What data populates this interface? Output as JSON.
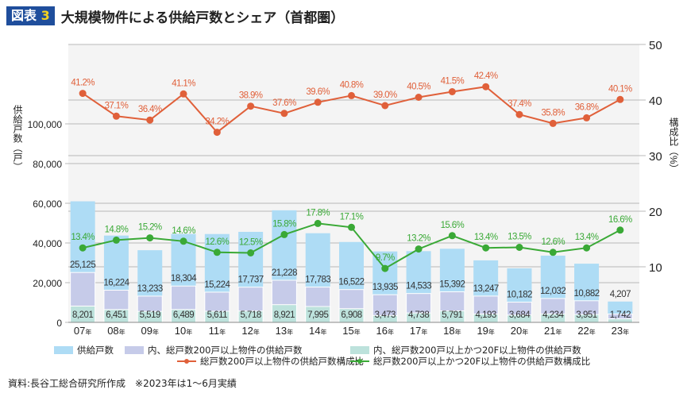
{
  "header": {
    "badge_label": "図表",
    "badge_number": "3",
    "title": "大規模物件による供給戸数とシェア（首都圏）"
  },
  "colors": {
    "total": "#aedcf5",
    "over200": "#c6cbe9",
    "over200_20f": "#bde2dc",
    "ratio200": "#e0603a",
    "ratio20f": "#3aa936",
    "plot_bg": "#f4f4f4",
    "grid": "#b8b8b8"
  },
  "chart_data": {
    "type": "bar",
    "title": "大規模物件による供給戸数とシェア（首都圏）",
    "categories": [
      "07",
      "08",
      "09",
      "10",
      "11",
      "12",
      "13",
      "14",
      "15",
      "16",
      "17",
      "18",
      "19",
      "20",
      "21",
      "22",
      "23"
    ],
    "category_suffix": "年",
    "ylabel": "供給戸数（戸）",
    "y2label": "構成比（%）",
    "ylim": [
      0,
      140000
    ],
    "y2lim": [
      0,
      50
    ],
    "yticks": [
      0,
      20000,
      40000,
      60000,
      80000,
      100000
    ],
    "ytick_labels": [
      "0",
      "20,000",
      "40,000",
      "60,000",
      "80,000",
      "100,000"
    ],
    "y2ticks": [
      10,
      20,
      30,
      40,
      50
    ],
    "y2tick_labels": [
      "10",
      "20",
      "30",
      "40",
      "50"
    ],
    "grid": true,
    "legend_position": "bottom",
    "series": [
      {
        "name": "供給戸数",
        "type": "bar",
        "values": [
          60983,
          43730,
          36354,
          44535,
          44515,
          45596,
          56457,
          44907,
          40495,
          35731,
          35884,
          37089,
          31243,
          27225,
          33609,
          29571,
          10491
        ]
      },
      {
        "name": "内、総戸数200戸以上物件の供給戸数",
        "type": "bar",
        "values": [
          25125,
          16224,
          13233,
          18304,
          15224,
          17737,
          21228,
          17783,
          16522,
          13935,
          14533,
          15392,
          13247,
          10182,
          12032,
          10882,
          4207
        ],
        "labels": [
          "25,125",
          "16,224",
          "13,233",
          "18,304",
          "15,224",
          "17,737",
          "21,228",
          "17,783",
          "16,522",
          "13,935",
          "14,533",
          "15,392",
          "13,247",
          "10,182",
          "12,032",
          "10,882",
          "4,207"
        ]
      },
      {
        "name": "内、総戸数200戸以上かつ20F以上物件の供給戸数",
        "type": "bar",
        "values": [
          8201,
          6451,
          5519,
          6489,
          5611,
          5718,
          8921,
          7995,
          6908,
          3473,
          4738,
          5791,
          4193,
          3684,
          4234,
          3951,
          1742
        ],
        "labels": [
          "8,201",
          "6,451",
          "5,519",
          "6,489",
          "5,611",
          "5,718",
          "8,921",
          "7,995",
          "6,908",
          "3,473",
          "4,738",
          "5,791",
          "4,193",
          "3,684",
          "4,234",
          "3,951",
          "1,742"
        ]
      },
      {
        "name": "総戸数200戸以上物件の供給戸数構成比",
        "type": "line",
        "axis": "y2",
        "values": [
          41.2,
          37.1,
          36.4,
          41.1,
          34.2,
          38.9,
          37.6,
          39.6,
          40.8,
          39.0,
          40.5,
          41.5,
          42.4,
          37.4,
          35.8,
          36.8,
          40.1
        ],
        "labels": [
          "41.2%",
          "37.1%",
          "36.4%",
          "41.1%",
          "34.2%",
          "38.9%",
          "37.6%",
          "39.6%",
          "40.8%",
          "39.0%",
          "40.5%",
          "41.5%",
          "42.4%",
          "37.4%",
          "35.8%",
          "36.8%",
          "40.1%"
        ]
      },
      {
        "name": "総戸数200戸以上かつ20F以上物件の供給戸数構成比",
        "type": "line",
        "axis": "y2",
        "values": [
          13.4,
          14.8,
          15.2,
          14.6,
          12.6,
          12.5,
          15.8,
          17.8,
          17.1,
          9.7,
          13.2,
          15.6,
          13.4,
          13.5,
          12.6,
          13.4,
          16.6
        ],
        "labels": [
          "13.4%",
          "14.8%",
          "15.2%",
          "14.6%",
          "12.6%",
          "12.5%",
          "15.8%",
          "17.8%",
          "17.1%",
          "9.7%",
          "13.2%",
          "15.6%",
          "13.4%",
          "13.5%",
          "12.6%",
          "13.4%",
          "16.6%"
        ]
      }
    ]
  },
  "legend": {
    "total": "供給戸数",
    "over200": "内、総戸数200戸以上物件の供給戸数",
    "over200_20f": "内、総戸数200戸以上かつ20F以上物件の供給戸数",
    "ratio200": "総戸数200戸以上物件の供給戸数構成比",
    "ratio20f": "総戸数200戸以上かつ20F以上物件の供給戸数構成比"
  },
  "source": "資料:長谷工総合研究所作成　※2023年は1～6月実績"
}
